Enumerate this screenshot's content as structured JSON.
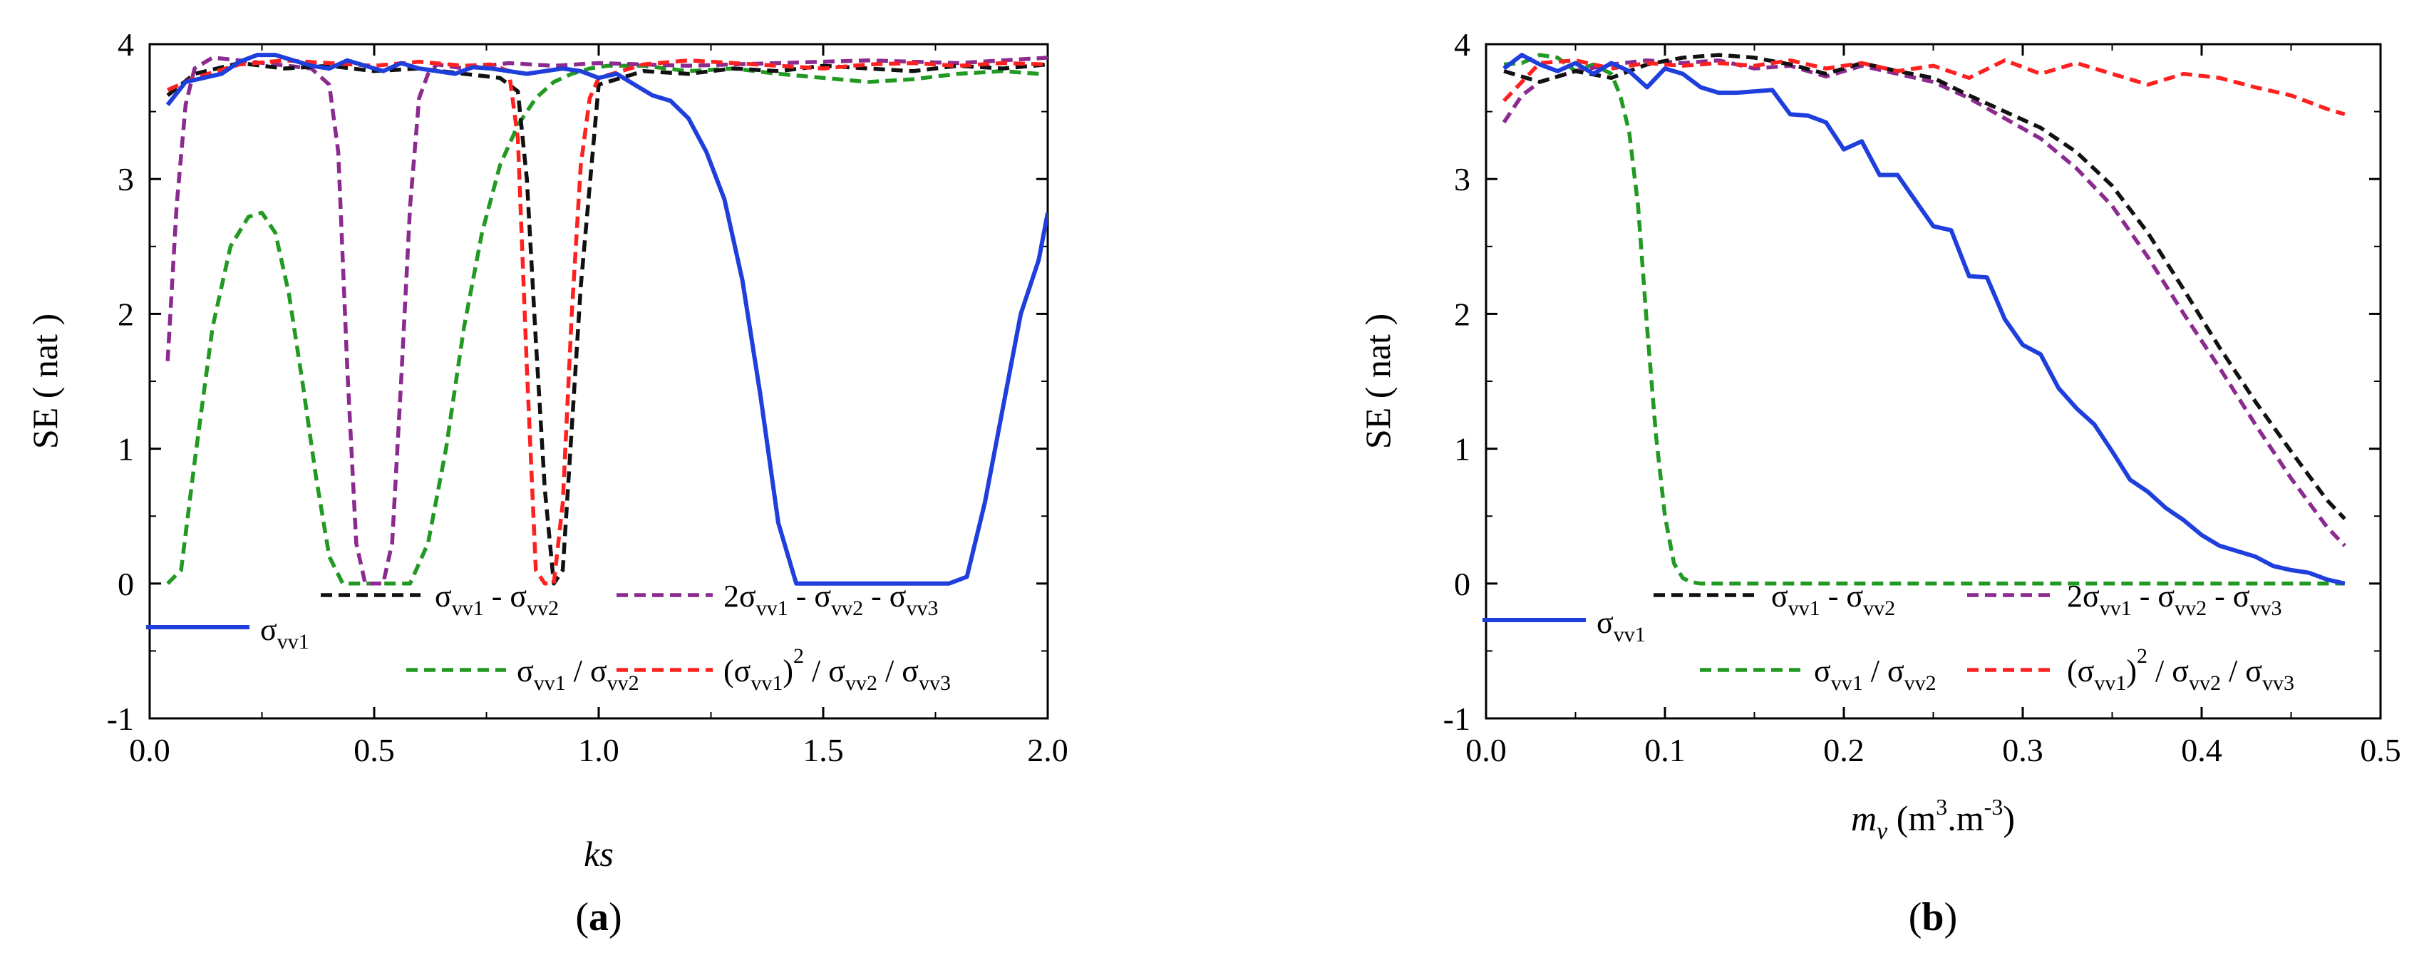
{
  "figure": {
    "panel_labels": [
      "(a)",
      "(b)"
    ],
    "panel_letters": [
      "a",
      "b"
    ]
  },
  "legend_entries": [
    {
      "id": "s1",
      "name": "σvv1",
      "parts": [
        [
          "σ",
          ""
        ],
        [
          "vv1",
          "sub"
        ]
      ],
      "color": "#1f3fdd",
      "dash": "solid"
    },
    {
      "id": "diff",
      "name": "σvv1 - σvv2",
      "parts": [
        [
          "σ",
          ""
        ],
        [
          "vv1",
          "sub"
        ],
        [
          " - σ",
          ""
        ],
        [
          "vv2",
          "sub"
        ]
      ],
      "color": "#111111",
      "dash": "dashed"
    },
    {
      "id": "tri",
      "name": "2σvv1 - σvv2 - σvv3",
      "parts": [
        [
          "2σ",
          ""
        ],
        [
          "vv1",
          "sub"
        ],
        [
          " - σ",
          ""
        ],
        [
          "vv2",
          "sub"
        ],
        [
          " - σ",
          ""
        ],
        [
          "vv3",
          "sub"
        ]
      ],
      "color": "#8b2a8f",
      "dash": "dashed"
    },
    {
      "id": "ratio",
      "name": "σvv1 / σvv2",
      "parts": [
        [
          "σ",
          ""
        ],
        [
          "vv1",
          "sub"
        ],
        [
          " / σ",
          ""
        ],
        [
          "vv2",
          "sub"
        ]
      ],
      "color": "#229922",
      "dash": "dashed"
    },
    {
      "id": "sq",
      "name": "(σvv1)2 / σvv2 / σvv3",
      "parts": [
        [
          "(σ",
          ""
        ],
        [
          "vv1",
          "sub"
        ],
        [
          ")",
          ""
        ],
        [
          "2",
          "sup"
        ],
        [
          " / σ",
          ""
        ],
        [
          "vv2",
          "sub"
        ],
        [
          " / σ",
          ""
        ],
        [
          "vv3",
          "sub"
        ]
      ],
      "color": "#ff2020",
      "dash": "dashed"
    }
  ],
  "chart_data": [
    {
      "type": "line",
      "panel": "(a)",
      "xlabel": "ks",
      "ylabel": "SE ( nat )",
      "xlim": [
        0,
        2.0
      ],
      "ylim": [
        -1,
        4
      ],
      "xticks": [
        0.0,
        0.5,
        1.0,
        1.5,
        2.0
      ],
      "xtick_labels": [
        "0.0",
        "0.5",
        "1.0",
        "1.5",
        "2.0"
      ],
      "yticks": [
        -1,
        0,
        1,
        2,
        3,
        4
      ],
      "ytick_labels": [
        "-1",
        "0",
        "1",
        "2",
        "3",
        "4"
      ],
      "series": [
        {
          "id": "s1",
          "x": [
            0.04,
            0.08,
            0.12,
            0.16,
            0.2,
            0.24,
            0.28,
            0.32,
            0.36,
            0.4,
            0.44,
            0.48,
            0.52,
            0.56,
            0.6,
            0.64,
            0.68,
            0.72,
            0.76,
            0.8,
            0.84,
            0.88,
            0.92,
            0.96,
            1.0,
            1.04,
            1.08,
            1.12,
            1.16,
            1.2,
            1.24,
            1.28,
            1.32,
            1.36,
            1.4,
            1.44,
            1.5,
            1.6,
            1.7,
            1.78,
            1.82,
            1.86,
            1.9,
            1.94,
            1.98,
            2.0
          ],
          "y": [
            3.55,
            3.72,
            3.75,
            3.78,
            3.87,
            3.92,
            3.92,
            3.88,
            3.84,
            3.82,
            3.88,
            3.84,
            3.8,
            3.86,
            3.82,
            3.8,
            3.78,
            3.83,
            3.82,
            3.8,
            3.78,
            3.8,
            3.82,
            3.8,
            3.75,
            3.78,
            3.7,
            3.62,
            3.58,
            3.45,
            3.2,
            2.85,
            2.25,
            1.4,
            0.45,
            0.0,
            0.0,
            0.0,
            0.0,
            0.0,
            0.05,
            0.6,
            1.3,
            2.0,
            2.4,
            2.75
          ]
        },
        {
          "id": "diff",
          "x": [
            0.04,
            0.1,
            0.2,
            0.3,
            0.4,
            0.5,
            0.6,
            0.7,
            0.78,
            0.82,
            0.84,
            0.86,
            0.88,
            0.9,
            0.92,
            0.96,
            1.0,
            1.1,
            1.2,
            1.3,
            1.4,
            1.5,
            1.6,
            1.7,
            1.8,
            1.9,
            2.0
          ],
          "y": [
            3.62,
            3.78,
            3.86,
            3.82,
            3.84,
            3.8,
            3.82,
            3.78,
            3.75,
            3.65,
            3.0,
            1.8,
            0.7,
            0.0,
            0.1,
            2.2,
            3.7,
            3.8,
            3.78,
            3.82,
            3.8,
            3.84,
            3.82,
            3.8,
            3.84,
            3.82,
            3.85
          ]
        },
        {
          "id": "tri",
          "x": [
            0.04,
            0.06,
            0.08,
            0.1,
            0.14,
            0.2,
            0.28,
            0.36,
            0.4,
            0.42,
            0.44,
            0.46,
            0.48,
            0.5,
            0.52,
            0.54,
            0.56,
            0.58,
            0.6,
            0.62,
            0.64,
            0.7,
            0.8,
            0.9,
            1.0,
            1.2,
            1.4,
            1.6,
            1.8,
            2.0
          ],
          "y": [
            1.65,
            2.8,
            3.55,
            3.82,
            3.9,
            3.88,
            3.85,
            3.82,
            3.7,
            3.2,
            1.6,
            0.3,
            0.0,
            0.0,
            0.0,
            0.3,
            1.5,
            2.8,
            3.6,
            3.78,
            3.85,
            3.82,
            3.86,
            3.84,
            3.86,
            3.84,
            3.86,
            3.88,
            3.86,
            3.9
          ]
        },
        {
          "id": "ratio",
          "x": [
            0.04,
            0.07,
            0.1,
            0.14,
            0.18,
            0.22,
            0.25,
            0.28,
            0.31,
            0.34,
            0.37,
            0.4,
            0.43,
            0.46,
            0.5,
            0.54,
            0.58,
            0.62,
            0.66,
            0.7,
            0.74,
            0.78,
            0.82,
            0.86,
            0.9,
            0.94,
            0.98,
            1.02,
            1.1,
            1.2,
            1.3,
            1.4,
            1.5,
            1.6,
            1.7,
            1.8,
            1.9,
            1.98
          ],
          "y": [
            0.0,
            0.1,
            0.9,
            1.9,
            2.5,
            2.72,
            2.75,
            2.6,
            2.15,
            1.5,
            0.8,
            0.2,
            0.0,
            0.0,
            0.0,
            0.0,
            0.0,
            0.3,
            1.0,
            1.9,
            2.6,
            3.1,
            3.4,
            3.6,
            3.72,
            3.78,
            3.82,
            3.84,
            3.84,
            3.8,
            3.82,
            3.78,
            3.75,
            3.72,
            3.74,
            3.78,
            3.8,
            3.78
          ]
        },
        {
          "id": "sq",
          "x": [
            0.04,
            0.1,
            0.2,
            0.3,
            0.4,
            0.5,
            0.6,
            0.7,
            0.76,
            0.8,
            0.82,
            0.84,
            0.86,
            0.88,
            0.9,
            0.92,
            0.94,
            0.96,
            0.98,
            1.0,
            1.1,
            1.2,
            1.3,
            1.4,
            1.5,
            1.6,
            1.7,
            1.8,
            1.9,
            2.0
          ],
          "y": [
            3.66,
            3.75,
            3.85,
            3.88,
            3.86,
            3.84,
            3.87,
            3.84,
            3.85,
            3.8,
            3.3,
            1.6,
            0.1,
            0.0,
            0.0,
            0.6,
            2.0,
            3.1,
            3.6,
            3.75,
            3.85,
            3.88,
            3.86,
            3.84,
            3.82,
            3.85,
            3.86,
            3.84,
            3.86,
            3.85
          ]
        }
      ]
    },
    {
      "type": "line",
      "panel": "(b)",
      "xlabel": "mv (m3.m-3)",
      "ylabel": "SE ( nat )",
      "xlim": [
        0,
        0.5
      ],
      "ylim": [
        -1,
        4
      ],
      "xticks": [
        0.0,
        0.1,
        0.2,
        0.3,
        0.4,
        0.5
      ],
      "xtick_labels": [
        "0.0",
        "0.1",
        "0.2",
        "0.3",
        "0.4",
        "0.5"
      ],
      "yticks": [
        -1,
        0,
        1,
        2,
        3,
        4
      ],
      "ytick_labels": [
        "-1",
        "0",
        "1",
        "2",
        "3",
        "4"
      ],
      "series": [
        {
          "id": "s1",
          "x": [
            0.01,
            0.02,
            0.03,
            0.04,
            0.05,
            0.06,
            0.07,
            0.08,
            0.09,
            0.1,
            0.11,
            0.12,
            0.13,
            0.14,
            0.15,
            0.16,
            0.17,
            0.18,
            0.19,
            0.2,
            0.21,
            0.22,
            0.23,
            0.24,
            0.25,
            0.26,
            0.27,
            0.28,
            0.29,
            0.3,
            0.31,
            0.32,
            0.33,
            0.34,
            0.35,
            0.36,
            0.37,
            0.38,
            0.39,
            0.4,
            0.41,
            0.42,
            0.43,
            0.44,
            0.45,
            0.46,
            0.47,
            0.48
          ],
          "y": [
            3.82,
            3.92,
            3.85,
            3.8,
            3.86,
            3.78,
            3.86,
            3.8,
            3.68,
            3.82,
            3.78,
            3.68,
            3.64,
            3.64,
            3.65,
            3.66,
            3.48,
            3.47,
            3.42,
            3.22,
            3.28,
            3.03,
            3.03,
            2.84,
            2.65,
            2.62,
            2.28,
            2.27,
            1.96,
            1.77,
            1.7,
            1.45,
            1.3,
            1.18,
            0.98,
            0.77,
            0.68,
            0.56,
            0.47,
            0.36,
            0.28,
            0.24,
            0.2,
            0.13,
            0.1,
            0.08,
            0.03,
            0.0
          ]
        },
        {
          "id": "diff",
          "x": [
            0.01,
            0.03,
            0.05,
            0.07,
            0.09,
            0.11,
            0.13,
            0.15,
            0.17,
            0.19,
            0.21,
            0.23,
            0.25,
            0.27,
            0.29,
            0.31,
            0.33,
            0.35,
            0.37,
            0.39,
            0.41,
            0.43,
            0.45,
            0.47,
            0.48
          ],
          "y": [
            3.8,
            3.72,
            3.8,
            3.75,
            3.85,
            3.9,
            3.92,
            3.9,
            3.85,
            3.78,
            3.86,
            3.8,
            3.75,
            3.62,
            3.5,
            3.38,
            3.2,
            2.95,
            2.6,
            2.18,
            1.75,
            1.35,
            0.98,
            0.62,
            0.48
          ]
        },
        {
          "id": "tri",
          "x": [
            0.01,
            0.02,
            0.03,
            0.05,
            0.07,
            0.09,
            0.11,
            0.13,
            0.15,
            0.17,
            0.19,
            0.21,
            0.23,
            0.25,
            0.27,
            0.29,
            0.31,
            0.33,
            0.35,
            0.37,
            0.39,
            0.41,
            0.43,
            0.45,
            0.47,
            0.48
          ],
          "y": [
            3.42,
            3.62,
            3.72,
            3.8,
            3.85,
            3.88,
            3.86,
            3.88,
            3.82,
            3.84,
            3.76,
            3.84,
            3.78,
            3.72,
            3.6,
            3.45,
            3.3,
            3.08,
            2.8,
            2.42,
            2.0,
            1.6,
            1.18,
            0.78,
            0.42,
            0.28
          ]
        },
        {
          "id": "ratio",
          "x": [
            0.01,
            0.02,
            0.03,
            0.04,
            0.05,
            0.06,
            0.07,
            0.075,
            0.08,
            0.085,
            0.09,
            0.095,
            0.1,
            0.105,
            0.11,
            0.115,
            0.12,
            0.2,
            0.3,
            0.4,
            0.48
          ],
          "y": [
            3.85,
            3.86,
            3.92,
            3.9,
            3.8,
            3.85,
            3.78,
            3.62,
            3.35,
            2.8,
            1.9,
            1.1,
            0.5,
            0.15,
            0.04,
            0.01,
            0.0,
            0.0,
            0.0,
            0.0,
            0.0
          ]
        },
        {
          "id": "sq",
          "x": [
            0.01,
            0.03,
            0.05,
            0.07,
            0.09,
            0.11,
            0.13,
            0.15,
            0.17,
            0.19,
            0.21,
            0.23,
            0.25,
            0.27,
            0.29,
            0.31,
            0.33,
            0.35,
            0.37,
            0.39,
            0.41,
            0.43,
            0.45,
            0.47,
            0.48
          ],
          "y": [
            3.58,
            3.86,
            3.88,
            3.82,
            3.86,
            3.84,
            3.86,
            3.84,
            3.88,
            3.82,
            3.86,
            3.8,
            3.84,
            3.75,
            3.88,
            3.78,
            3.86,
            3.78,
            3.7,
            3.78,
            3.75,
            3.68,
            3.62,
            3.52,
            3.48
          ]
        }
      ]
    }
  ]
}
